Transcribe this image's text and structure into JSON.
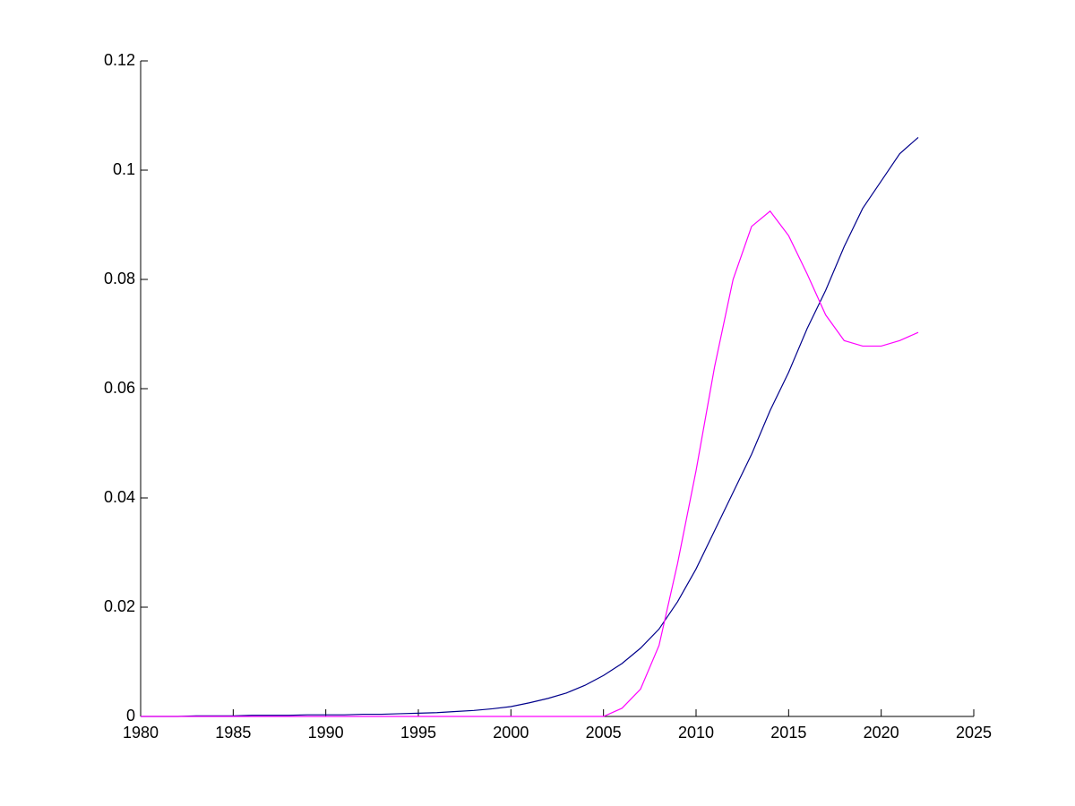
{
  "chart_data": {
    "type": "line",
    "x": [
      1980,
      1981,
      1982,
      1983,
      1984,
      1985,
      1986,
      1987,
      1988,
      1989,
      1990,
      1991,
      1992,
      1993,
      1994,
      1995,
      1996,
      1997,
      1998,
      1999,
      2000,
      2001,
      2002,
      2003,
      2004,
      2005,
      2006,
      2007,
      2008,
      2009,
      2010,
      2011,
      2012,
      2013,
      2014,
      2015,
      2016,
      2017,
      2018,
      2019,
      2020,
      2021,
      2022
    ],
    "series": [
      {
        "color": "#00008b",
        "values": [
          0,
          0,
          0,
          0.0001,
          0.0001,
          0.0001,
          0.0002,
          0.0002,
          0.0002,
          0.0003,
          0.0003,
          0.0003,
          0.0004,
          0.0004,
          0.0005,
          0.0006,
          0.0007,
          0.0009,
          0.0011,
          0.0014,
          0.0018,
          0.0025,
          0.0033,
          0.0043,
          0.0057,
          0.0075,
          0.0097,
          0.0125,
          0.016,
          0.021,
          0.027,
          0.034,
          0.041,
          0.048,
          0.056,
          0.063,
          0.071,
          0.078,
          0.086,
          0.093,
          0.098,
          0.103,
          0.106
        ]
      },
      {
        "color": "#ff00ff",
        "values": [
          0,
          0,
          0,
          0,
          0,
          0,
          0,
          0,
          0,
          0,
          0,
          0,
          0,
          0,
          0,
          0,
          0,
          0,
          0,
          0,
          0,
          0,
          0,
          0,
          0,
          0,
          0.0015,
          0.005,
          0.013,
          0.028,
          0.045,
          0.064,
          0.08,
          0.0897,
          0.0925,
          0.088,
          0.081,
          0.0735,
          0.0688,
          0.0678,
          0.0678,
          0.0688,
          0.0703
        ]
      }
    ],
    "xlim": [
      1980,
      2025
    ],
    "xticks": [
      1980,
      1985,
      1990,
      1995,
      2000,
      2005,
      2010,
      2015,
      2020,
      2025
    ],
    "ylim": [
      0,
      0.12
    ],
    "yticks": [
      0,
      0.02,
      0.04,
      0.06,
      0.08,
      0.1,
      0.12
    ],
    "grid": false
  }
}
